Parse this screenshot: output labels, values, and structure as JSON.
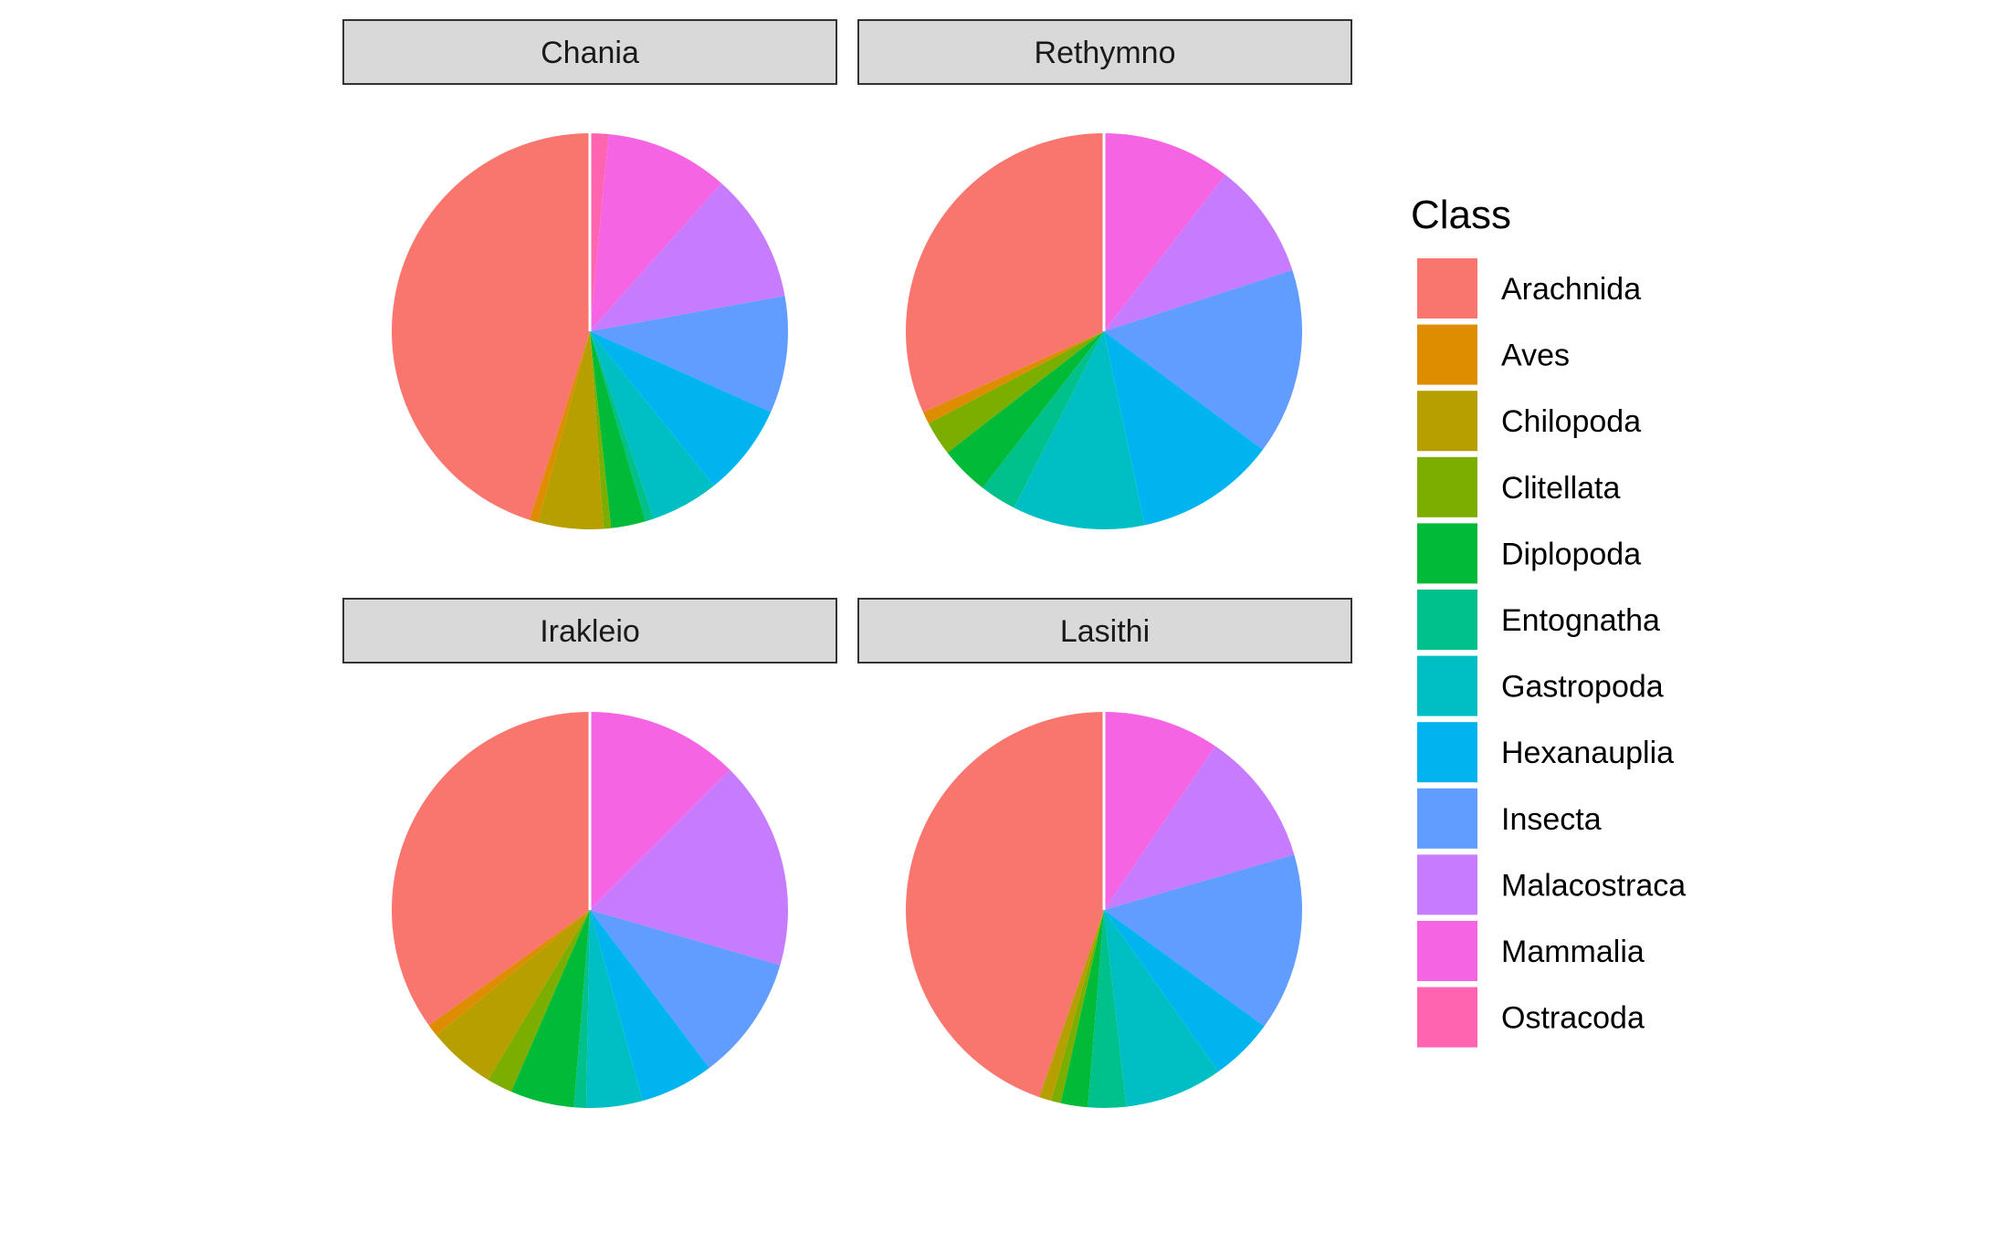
{
  "chart_data": {
    "type": "pie",
    "facet_order": [
      "Chania",
      "Rethymno",
      "Irakleio",
      "Lasithi"
    ],
    "legend": {
      "title": "Class",
      "placement": "right",
      "entries": [
        {
          "name": "Arachnida",
          "color": "#F8766D"
        },
        {
          "name": "Aves",
          "color": "#DE8C00"
        },
        {
          "name": "Chilopoda",
          "color": "#B79F00"
        },
        {
          "name": "Clitellata",
          "color": "#7CAE00"
        },
        {
          "name": "Diplopoda",
          "color": "#00BA38"
        },
        {
          "name": "Entognatha",
          "color": "#00C08B"
        },
        {
          "name": "Gastropoda",
          "color": "#00BFC4"
        },
        {
          "name": "Hexanauplia",
          "color": "#00B4F0"
        },
        {
          "name": "Insecta",
          "color": "#619CFF"
        },
        {
          "name": "Malacostraca",
          "color": "#C77CFF"
        },
        {
          "name": "Mammalia",
          "color": "#F564E3"
        },
        {
          "name": "Ostracoda",
          "color": "#FF64B0"
        }
      ]
    },
    "facets": [
      {
        "name": "Chania",
        "categories": [
          "Ostracoda",
          "Mammalia",
          "Malacostraca",
          "Insecta",
          "Hexanauplia",
          "Gastropoda",
          "Entognatha",
          "Diplopoda",
          "Clitellata",
          "Chilopoda",
          "Aves",
          "Arachnida"
        ],
        "values": [
          1.5,
          10.0,
          10.5,
          9.5,
          7.5,
          5.5,
          0.7,
          2.8,
          0.6,
          5.3,
          0.7,
          44.8
        ]
      },
      {
        "name": "Rethymno",
        "categories": [
          "Mammalia",
          "Malacostraca",
          "Insecta",
          "Hexanauplia",
          "Gastropoda",
          "Entognatha",
          "Diplopoda",
          "Clitellata",
          "Chilopoda",
          "Aves",
          "Arachnida"
        ],
        "values": [
          10.5,
          9.5,
          15.2,
          11.5,
          10.8,
          3.0,
          4.0,
          2.8,
          0.0,
          1.0,
          31.7
        ]
      },
      {
        "name": "Irakleio",
        "categories": [
          "Mammalia",
          "Malacostraca",
          "Insecta",
          "Hexanauplia",
          "Gastropoda",
          "Entognatha",
          "Diplopoda",
          "Clitellata",
          "Chilopoda",
          "Aves",
          "Arachnida"
        ],
        "values": [
          12.5,
          17.0,
          10.2,
          6.0,
          4.6,
          1.0,
          5.2,
          2.1,
          5.5,
          1.0,
          34.9
        ]
      },
      {
        "name": "Lasithi",
        "categories": [
          "Mammalia",
          "Malacostraca",
          "Insecta",
          "Hexanauplia",
          "Gastropoda",
          "Entognatha",
          "Diplopoda",
          "Clitellata",
          "Chilopoda",
          "Aves",
          "Arachnida"
        ],
        "values": [
          9.5,
          11.0,
          14.5,
          5.2,
          8.0,
          3.1,
          2.2,
          0.8,
          1.0,
          0.0,
          44.7
        ]
      }
    ]
  }
}
